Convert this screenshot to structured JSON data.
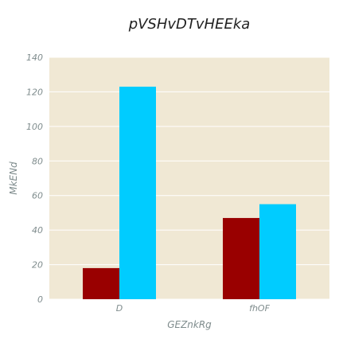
{
  "chart_data": {
    "type": "bar",
    "title": "pVSHvDTvHEEka",
    "xlabel": "GEZnkRg",
    "ylabel": "MkENd",
    "categories": [
      "D",
      "fhOF"
    ],
    "series": [
      {
        "values": [
          18,
          47
        ],
        "color": "#990000"
      },
      {
        "values": [
          123,
          55
        ],
        "color": "#00ccff"
      }
    ],
    "ylim": [
      0,
      140
    ],
    "yticks": [
      "0",
      "20",
      "40",
      "60",
      "80",
      "100",
      "120",
      "140"
    ],
    "grid": true,
    "background": "#f0e8d4",
    "legend": "none"
  }
}
